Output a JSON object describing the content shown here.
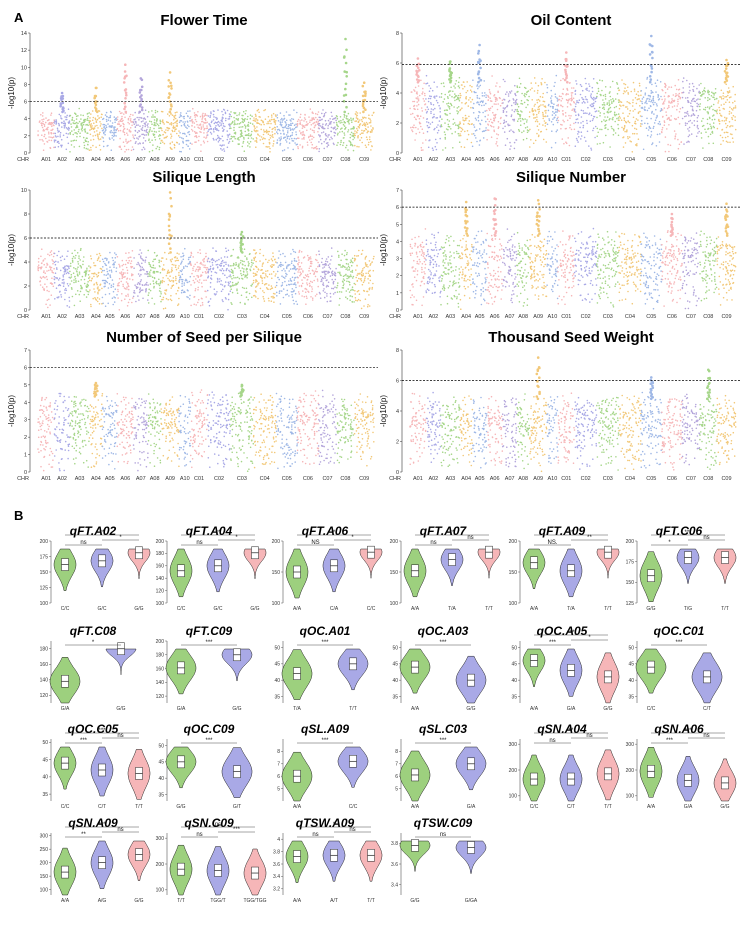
{
  "panel_letters": {
    "a": "A",
    "b": "B"
  },
  "colors": {
    "palette": [
      "#f6b6b8",
      "#a9a9e6",
      "#a6d68a",
      "#f2c879",
      "#9fb8e6",
      "#b4a6db"
    ],
    "violin_fills": [
      "#9dd07e",
      "#a9a9e6",
      "#f6b6b8"
    ],
    "threshold_line": "#000000"
  },
  "chart_data": [
    {
      "type": "scatter",
      "title": "Flower Time",
      "ylabel": "-log10(p)",
      "ylim": [
        0,
        14
      ],
      "yticks": [
        0,
        2,
        4,
        6,
        8,
        10,
        12,
        14
      ],
      "threshold": 6.0,
      "chr_label": "CHR",
      "xticks": [
        "A01",
        "A02",
        "A03",
        "A04",
        "A05",
        "A06",
        "A07",
        "A08",
        "A09",
        "A10",
        "C01",
        "C02",
        "C03",
        "C04",
        "C05",
        "C06",
        "C07",
        "C08",
        "C09"
      ],
      "peaks": [
        {
          "chr": "A02",
          "value": 7.0
        },
        {
          "chr": "A04",
          "value": 7.6
        },
        {
          "chr": "A06",
          "value": 10.3
        },
        {
          "chr": "A07",
          "value": 8.7
        },
        {
          "chr": "A09",
          "value": 9.4
        },
        {
          "chr": "C08",
          "value": 13.3
        },
        {
          "chr": "C09",
          "value": 8.2
        }
      ]
    },
    {
      "type": "scatter",
      "title": "Oil Content",
      "ylabel": "-log10(p)",
      "ylim": [
        0,
        8
      ],
      "yticks": [
        0,
        2,
        4,
        6,
        8
      ],
      "threshold": 5.9,
      "chr_label": "CHR",
      "xticks": [
        "A01",
        "A02",
        "A03",
        "A04",
        "A05",
        "A06",
        "A07",
        "A08",
        "A09",
        "A10",
        "C01",
        "C02",
        "C03",
        "C04",
        "C05",
        "C06",
        "C07",
        "C08",
        "C09"
      ],
      "peaks": [
        {
          "chr": "A01",
          "value": 6.3
        },
        {
          "chr": "A03",
          "value": 6.1
        },
        {
          "chr": "A05",
          "value": 7.2
        },
        {
          "chr": "C01",
          "value": 6.7
        },
        {
          "chr": "C05",
          "value": 7.8
        },
        {
          "chr": "C09",
          "value": 6.2
        }
      ]
    },
    {
      "type": "scatter",
      "title": "Silique Length",
      "ylabel": "-log10(p)",
      "ylim": [
        0,
        10
      ],
      "yticks": [
        0,
        2,
        4,
        6,
        8,
        10
      ],
      "threshold": 6.0,
      "chr_label": "CHR",
      "xticks": [
        "A01",
        "A02",
        "A03",
        "A04",
        "A05",
        "A06",
        "A07",
        "A08",
        "A09",
        "A10",
        "C01",
        "C02",
        "C03",
        "C04",
        "C05",
        "C06",
        "C07",
        "C08",
        "C09"
      ],
      "peaks": [
        {
          "chr": "A09",
          "value": 9.8
        },
        {
          "chr": "C03",
          "value": 6.5
        }
      ]
    },
    {
      "type": "scatter",
      "title": "Silique Number",
      "ylabel": "-log10(p)",
      "ylim": [
        0,
        7
      ],
      "yticks": [
        0,
        1,
        2,
        3,
        4,
        5,
        6,
        7
      ],
      "threshold": 6.0,
      "chr_label": "CHR",
      "xticks": [
        "A01",
        "A02",
        "A03",
        "A04",
        "A05",
        "A06",
        "A07",
        "A08",
        "A09",
        "A10",
        "C01",
        "C02",
        "C03",
        "C04",
        "C05",
        "C06",
        "C07",
        "C08",
        "C09"
      ],
      "peaks": [
        {
          "chr": "A04",
          "value": 6.3
        },
        {
          "chr": "A06",
          "value": 6.5
        },
        {
          "chr": "A09",
          "value": 6.4
        },
        {
          "chr": "C06",
          "value": 5.6
        },
        {
          "chr": "C09",
          "value": 6.2
        }
      ]
    },
    {
      "type": "scatter",
      "title": "Number of Seed per Silique",
      "ylabel": "-log10(p)",
      "ylim": [
        0,
        7
      ],
      "yticks": [
        0,
        1,
        2,
        3,
        4,
        5,
        6,
        7
      ],
      "threshold": 6.0,
      "chr_label": "CHR",
      "xticks": [
        "A01",
        "A02",
        "A03",
        "A04",
        "A05",
        "A06",
        "A07",
        "A08",
        "A09",
        "A10",
        "C01",
        "C02",
        "C03",
        "C04",
        "C05",
        "C06",
        "C07",
        "C08",
        "C09"
      ],
      "peaks": [
        {
          "chr": "A04",
          "value": 5.1
        },
        {
          "chr": "C03",
          "value": 5.0
        }
      ]
    },
    {
      "type": "scatter",
      "title": "Thousand Seed Weight",
      "ylabel": "-log10(p)",
      "ylim": [
        0,
        8
      ],
      "yticks": [
        0,
        2,
        4,
        6,
        8
      ],
      "threshold": 6.0,
      "chr_label": "CHR",
      "xticks": [
        "A01",
        "A02",
        "A03",
        "A04",
        "A05",
        "A06",
        "A07",
        "A08",
        "A09",
        "A10",
        "C01",
        "C02",
        "C03",
        "C04",
        "C05",
        "C06",
        "C07",
        "C08",
        "C09"
      ],
      "peaks": [
        {
          "chr": "A09",
          "value": 7.5
        },
        {
          "chr": "C05",
          "value": 6.2
        },
        {
          "chr": "C08",
          "value": 6.7
        }
      ]
    },
    {
      "type": "violin",
      "title": "qFT.A02",
      "ylim": [
        100,
        200
      ],
      "yticks": [
        100,
        125,
        150,
        175,
        200
      ],
      "categories": [
        "C/C",
        "G/C",
        "G/G"
      ],
      "medians": [
        162,
        168,
        181
      ],
      "comparisons": [
        {
          "from": 0,
          "to": 1,
          "label": "ns"
        },
        {
          "from": 0,
          "to": 2,
          "label": "**"
        },
        {
          "from": 1,
          "to": 2,
          "label": "*"
        }
      ]
    },
    {
      "type": "violin",
      "title": "qFT.A04",
      "ylim": [
        100,
        200
      ],
      "yticks": [
        100,
        120,
        140,
        160,
        180,
        200
      ],
      "categories": [
        "C/C",
        "G/C",
        "G/G"
      ],
      "medians": [
        152,
        160,
        181
      ],
      "comparisons": [
        {
          "from": 0,
          "to": 1,
          "label": "ns"
        },
        {
          "from": 0,
          "to": 2,
          "label": "**"
        },
        {
          "from": 1,
          "to": 2,
          "label": "*"
        }
      ]
    },
    {
      "type": "violin",
      "title": "qFT.A06",
      "ylim": [
        100,
        200
      ],
      "yticks": [
        100,
        150,
        200
      ],
      "categories": [
        "A/A",
        "C/A",
        "C/C"
      ],
      "medians": [
        150,
        160,
        182
      ],
      "comparisons": [
        {
          "from": 0,
          "to": 1,
          "label": "NS"
        },
        {
          "from": 0,
          "to": 2,
          "label": "*"
        },
        {
          "from": 1,
          "to": 2,
          "label": "*"
        }
      ]
    },
    {
      "type": "violin",
      "title": "qFT.A07",
      "ylim": [
        100,
        200
      ],
      "yticks": [
        100,
        150,
        200
      ],
      "categories": [
        "A/A",
        "T/A",
        "T/T"
      ],
      "medians": [
        152,
        170,
        182
      ],
      "comparisons": [
        {
          "from": 0,
          "to": 1,
          "label": "ns"
        },
        {
          "from": 0,
          "to": 2,
          "label": "**"
        },
        {
          "from": 1,
          "to": 2,
          "label": "ns"
        }
      ]
    },
    {
      "type": "violin",
      "title": "qFT.A09",
      "ylim": [
        100,
        200
      ],
      "yticks": [
        100,
        150,
        200
      ],
      "categories": [
        "A/A",
        "T/A",
        "T/T"
      ],
      "medians": [
        165,
        152,
        182
      ],
      "comparisons": [
        {
          "from": 0,
          "to": 1,
          "label": "NS."
        },
        {
          "from": 0,
          "to": 2,
          "label": "**"
        },
        {
          "from": 1,
          "to": 2,
          "label": "**"
        }
      ]
    },
    {
      "type": "violin",
      "title": "qFT.C06",
      "ylim": [
        125,
        200
      ],
      "yticks": [
        125,
        150,
        175,
        200
      ],
      "categories": [
        "G/G",
        "T/G",
        "T/T"
      ],
      "medians": [
        158,
        180,
        180
      ],
      "comparisons": [
        {
          "from": 0,
          "to": 1,
          "label": "*"
        },
        {
          "from": 0,
          "to": 2,
          "label": "***"
        },
        {
          "from": 1,
          "to": 2,
          "label": "ns"
        }
      ]
    },
    {
      "type": "violin",
      "title": "qFT.C08",
      "ylim": [
        110,
        190
      ],
      "yticks": [
        120,
        140,
        160,
        180
      ],
      "categories": [
        "G/A",
        "G/G"
      ],
      "medians": [
        138,
        180
      ],
      "comparisons": [
        {
          "from": 0,
          "to": 1,
          "label": "*"
        }
      ]
    },
    {
      "type": "violin",
      "title": "qFT.C09",
      "ylim": [
        110,
        200
      ],
      "yticks": [
        120,
        140,
        160,
        180,
        200
      ],
      "categories": [
        "G/A",
        "G/G"
      ],
      "medians": [
        161,
        180
      ],
      "comparisons": [
        {
          "from": 0,
          "to": 1,
          "label": "***"
        }
      ]
    },
    {
      "type": "violin",
      "title": "qOC.A01",
      "ylim": [
        33,
        52
      ],
      "yticks": [
        35,
        40,
        45,
        50
      ],
      "categories": [
        "T/A",
        "T/T"
      ],
      "medians": [
        42,
        45
      ],
      "comparisons": [
        {
          "from": 0,
          "to": 1,
          "label": "***"
        }
      ]
    },
    {
      "type": "violin",
      "title": "qOC.A03",
      "ylim": [
        33,
        52
      ],
      "yticks": [
        35,
        40,
        45,
        50
      ],
      "categories": [
        "A/A",
        "G/G"
      ],
      "medians": [
        44,
        40
      ],
      "comparisons": [
        {
          "from": 0,
          "to": 1,
          "label": "***"
        }
      ]
    },
    {
      "type": "violin",
      "title": "qOC.A05",
      "ylim": [
        33,
        52
      ],
      "yticks": [
        35,
        40,
        45,
        50
      ],
      "categories": [
        "A/A",
        "G/A",
        "G/G"
      ],
      "medians": [
        46,
        43,
        41
      ],
      "comparisons": [
        {
          "from": 0,
          "to": 1,
          "label": "***"
        },
        {
          "from": 0,
          "to": 2,
          "label": "***"
        },
        {
          "from": 1,
          "to": 2,
          "label": "*"
        }
      ]
    },
    {
      "type": "violin",
      "title": "qOC.C01",
      "ylim": [
        33,
        52
      ],
      "yticks": [
        35,
        40,
        45,
        50
      ],
      "categories": [
        "C/C",
        "C/T"
      ],
      "medians": [
        44,
        41
      ],
      "comparisons": [
        {
          "from": 0,
          "to": 1,
          "label": "***"
        }
      ]
    },
    {
      "type": "violin",
      "title": "qOC.C05",
      "ylim": [
        33,
        51
      ],
      "yticks": [
        35,
        40,
        45,
        50
      ],
      "categories": [
        "C/C",
        "C/T",
        "T/T"
      ],
      "medians": [
        44,
        42,
        41
      ],
      "comparisons": [
        {
          "from": 0,
          "to": 1,
          "label": "***"
        },
        {
          "from": 0,
          "to": 2,
          "label": "***"
        },
        {
          "from": 1,
          "to": 2,
          "label": "ns"
        }
      ]
    },
    {
      "type": "violin",
      "title": "qOC.C09",
      "ylim": [
        33,
        52
      ],
      "yticks": [
        35,
        40,
        45,
        50
      ],
      "categories": [
        "G/G",
        "G/T"
      ],
      "medians": [
        45,
        42
      ],
      "comparisons": [
        {
          "from": 0,
          "to": 1,
          "label": "***"
        }
      ]
    },
    {
      "type": "violin",
      "title": "qSL.A09",
      "ylim": [
        4,
        9
      ],
      "yticks": [
        5,
        6,
        7,
        8
      ],
      "categories": [
        "A/A",
        "C/C"
      ],
      "medians": [
        6.0,
        7.2
      ],
      "comparisons": [
        {
          "from": 0,
          "to": 1,
          "label": "***"
        }
      ]
    },
    {
      "type": "violin",
      "title": "qSL.C03",
      "ylim": [
        4,
        9
      ],
      "yticks": [
        5,
        6,
        7,
        8
      ],
      "categories": [
        "A/A",
        "G/A"
      ],
      "medians": [
        6.1,
        7.0
      ],
      "comparisons": [
        {
          "from": 0,
          "to": 1,
          "label": "***"
        }
      ]
    },
    {
      "type": "violin",
      "title": "qSN.A04",
      "ylim": [
        80,
        320
      ],
      "yticks": [
        100,
        200,
        300
      ],
      "categories": [
        "C/C",
        "C/T",
        "T/T"
      ],
      "medians": [
        165,
        165,
        185
      ],
      "comparisons": [
        {
          "from": 0,
          "to": 1,
          "label": "ns"
        },
        {
          "from": 0,
          "to": 2,
          "label": "**"
        },
        {
          "from": 1,
          "to": 2,
          "label": "ns"
        }
      ]
    },
    {
      "type": "violin",
      "title": "qSN.A06",
      "ylim": [
        80,
        320
      ],
      "yticks": [
        100,
        200,
        300
      ],
      "categories": [
        "A/A",
        "G/A",
        "G/G"
      ],
      "medians": [
        195,
        160,
        150
      ],
      "comparisons": [
        {
          "from": 0,
          "to": 1,
          "label": "***"
        },
        {
          "from": 0,
          "to": 2,
          "label": "***"
        },
        {
          "from": 1,
          "to": 2,
          "label": "ns"
        }
      ]
    },
    {
      "type": "violin",
      "title": "qSN.A09",
      "ylim": [
        80,
        310
      ],
      "yticks": [
        100,
        150,
        200,
        250,
        300
      ],
      "categories": [
        "A/A",
        "A/G",
        "G/G"
      ],
      "medians": [
        165,
        200,
        230
      ],
      "comparisons": [
        {
          "from": 0,
          "to": 1,
          "label": "**"
        },
        {
          "from": 0,
          "to": 2,
          "label": "***"
        },
        {
          "from": 1,
          "to": 2,
          "label": "ns"
        }
      ]
    },
    {
      "type": "violin",
      "title": "qSN.C09",
      "ylim": [
        80,
        320
      ],
      "yticks": [
        100,
        200,
        300
      ],
      "categories": [
        "T/T",
        "TGG/T",
        "TGG/TGG"
      ],
      "medians": [
        180,
        175,
        165
      ],
      "comparisons": [
        {
          "from": 0,
          "to": 1,
          "label": "ns"
        },
        {
          "from": 0,
          "to": 2,
          "label": "ns"
        },
        {
          "from": 1,
          "to": 2,
          "label": "***"
        }
      ]
    },
    {
      "type": "violin",
      "title": "qTSW.A09",
      "ylim": [
        3.1,
        4.1
      ],
      "yticks": [
        3.2,
        3.4,
        3.6,
        3.8,
        4.0
      ],
      "categories": [
        "A/A",
        "A/T",
        "T/T"
      ],
      "medians": [
        3.72,
        3.74,
        3.74
      ],
      "comparisons": [
        {
          "from": 0,
          "to": 1,
          "label": "ns"
        },
        {
          "from": 0,
          "to": 2,
          "label": "*"
        },
        {
          "from": 1,
          "to": 2,
          "label": "ns"
        }
      ]
    },
    {
      "type": "violin",
      "title": "qTSW.C09",
      "ylim": [
        3.3,
        3.9
      ],
      "yticks": [
        3.4,
        3.6,
        3.8
      ],
      "categories": [
        "G/G",
        "G/GA"
      ],
      "medians": [
        3.78,
        3.76
      ],
      "comparisons": [
        {
          "from": 0,
          "to": 1,
          "label": "ns"
        }
      ]
    }
  ]
}
